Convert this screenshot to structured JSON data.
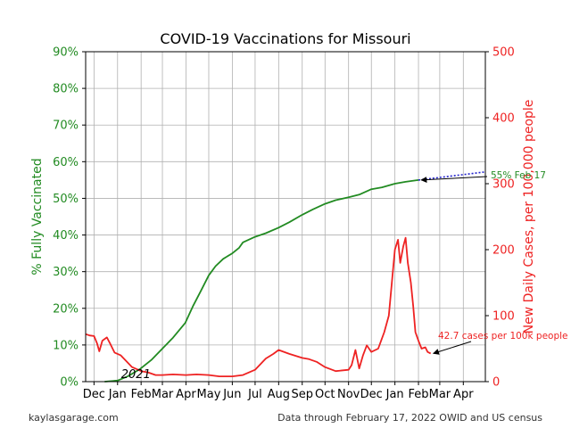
{
  "chart_data": {
    "type": "line",
    "title": "COVID-19 Vaccinations for Missouri",
    "ylabel_left": "% Fully Vaccinated",
    "ylabel_right": "New Daily Cases, per 100,000 people",
    "x_range": [
      "2020-11-20",
      "2022-04-30"
    ],
    "ylim_left": [
      0,
      90
    ],
    "ylim_right": [
      0,
      500
    ],
    "left_ticks": [
      "0%",
      "10%",
      "20%",
      "30%",
      "40%",
      "50%",
      "60%",
      "70%",
      "80%",
      "90%"
    ],
    "right_ticks": [
      "0",
      "100",
      "200",
      "300",
      "400",
      "500"
    ],
    "x_ticks": [
      {
        "date": "2020-12-01",
        "label": "Dec"
      },
      {
        "date": "2021-01-01",
        "label": "Jan"
      },
      {
        "date": "2021-02-01",
        "label": "Feb"
      },
      {
        "date": "2021-03-01",
        "label": "Mar"
      },
      {
        "date": "2021-04-01",
        "label": "Apr"
      },
      {
        "date": "2021-05-01",
        "label": "May"
      },
      {
        "date": "2021-06-01",
        "label": "Jun"
      },
      {
        "date": "2021-07-01",
        "label": "Jul"
      },
      {
        "date": "2021-08-01",
        "label": "Aug"
      },
      {
        "date": "2021-09-01",
        "label": "Sep"
      },
      {
        "date": "2021-10-01",
        "label": "Oct"
      },
      {
        "date": "2021-11-01",
        "label": "Nov"
      },
      {
        "date": "2021-12-01",
        "label": "Dec"
      },
      {
        "date": "2022-01-01",
        "label": "Jan"
      },
      {
        "date": "2022-02-01",
        "label": "Feb"
      },
      {
        "date": "2022-03-01",
        "label": "Mar"
      },
      {
        "date": "2022-04-01",
        "label": "Apr"
      }
    ],
    "year_label": {
      "date": "2021-01-01",
      "text": "2021"
    },
    "grid": true,
    "series": [
      {
        "name": "% Fully Vaccinated",
        "axis": "left",
        "color": "#228B22",
        "points": [
          [
            "2020-12-15",
            0
          ],
          [
            "2021-01-01",
            0.3
          ],
          [
            "2021-01-15",
            1.5
          ],
          [
            "2021-01-31",
            3.5
          ],
          [
            "2021-02-15",
            6.0
          ],
          [
            "2021-03-01",
            9.0
          ],
          [
            "2021-03-15",
            12.0
          ],
          [
            "2021-03-31",
            16.0
          ],
          [
            "2021-04-10",
            20.5
          ],
          [
            "2021-04-20",
            24.5
          ],
          [
            "2021-05-01",
            29.0
          ],
          [
            "2021-05-10",
            31.5
          ],
          [
            "2021-05-20",
            33.5
          ],
          [
            "2021-06-01",
            35.0
          ],
          [
            "2021-06-10",
            36.5
          ],
          [
            "2021-06-15",
            38.0
          ],
          [
            "2021-07-01",
            39.5
          ],
          [
            "2021-07-15",
            40.5
          ],
          [
            "2021-08-01",
            42.0
          ],
          [
            "2021-08-15",
            43.5
          ],
          [
            "2021-09-01",
            45.5
          ],
          [
            "2021-09-15",
            47.0
          ],
          [
            "2021-10-01",
            48.5
          ],
          [
            "2021-10-15",
            49.5
          ],
          [
            "2021-11-01",
            50.3
          ],
          [
            "2021-11-15",
            51.0
          ],
          [
            "2021-12-01",
            52.5
          ],
          [
            "2021-12-15",
            53.0
          ],
          [
            "2022-01-01",
            54.0
          ],
          [
            "2022-01-15",
            54.5
          ],
          [
            "2022-02-01",
            55.0
          ]
        ]
      },
      {
        "name": "New Daily Cases, per 100,000 people",
        "axis": "right",
        "color": "#EE2222",
        "points": [
          [
            "2020-11-20",
            72
          ],
          [
            "2020-11-25",
            70
          ],
          [
            "2020-12-01",
            69
          ],
          [
            "2020-12-05",
            58
          ],
          [
            "2020-12-08",
            46
          ],
          [
            "2020-12-12",
            62
          ],
          [
            "2020-12-18",
            67
          ],
          [
            "2020-12-22",
            58
          ],
          [
            "2020-12-28",
            44
          ],
          [
            "2021-01-05",
            40
          ],
          [
            "2021-01-10",
            34
          ],
          [
            "2021-01-15",
            28
          ],
          [
            "2021-01-20",
            22
          ],
          [
            "2021-02-01",
            16
          ],
          [
            "2021-02-10",
            14
          ],
          [
            "2021-02-20",
            10
          ],
          [
            "2021-03-01",
            10
          ],
          [
            "2021-03-15",
            11
          ],
          [
            "2021-04-01",
            10
          ],
          [
            "2021-04-15",
            11
          ],
          [
            "2021-05-01",
            10
          ],
          [
            "2021-05-15",
            8
          ],
          [
            "2021-06-01",
            8
          ],
          [
            "2021-06-15",
            10
          ],
          [
            "2021-07-01",
            18
          ],
          [
            "2021-07-15",
            35
          ],
          [
            "2021-07-25",
            42
          ],
          [
            "2021-08-01",
            48
          ],
          [
            "2021-08-15",
            42
          ],
          [
            "2021-09-01",
            36
          ],
          [
            "2021-09-10",
            34
          ],
          [
            "2021-09-20",
            30
          ],
          [
            "2021-10-01",
            22
          ],
          [
            "2021-10-15",
            16
          ],
          [
            "2021-11-01",
            18
          ],
          [
            "2021-11-05",
            25
          ],
          [
            "2021-11-10",
            48
          ],
          [
            "2021-11-15",
            20
          ],
          [
            "2021-11-20",
            40
          ],
          [
            "2021-11-25",
            55
          ],
          [
            "2021-12-01",
            45
          ],
          [
            "2021-12-10",
            50
          ],
          [
            "2021-12-18",
            75
          ],
          [
            "2021-12-24",
            100
          ],
          [
            "2021-12-28",
            150
          ],
          [
            "2022-01-01",
            200
          ],
          [
            "2022-01-05",
            215
          ],
          [
            "2022-01-08",
            180
          ],
          [
            "2022-01-12",
            205
          ],
          [
            "2022-01-15",
            218
          ],
          [
            "2022-01-18",
            180
          ],
          [
            "2022-01-22",
            150
          ],
          [
            "2022-01-25",
            115
          ],
          [
            "2022-01-28",
            75
          ],
          [
            "2022-02-01",
            62
          ],
          [
            "2022-02-05",
            50
          ],
          [
            "2022-02-10",
            52
          ],
          [
            "2022-02-13",
            45
          ],
          [
            "2022-02-17",
            42.7
          ]
        ]
      },
      {
        "name": "projection",
        "axis": "left",
        "color": "#2222CC",
        "dashed": true,
        "points": [
          [
            "2022-02-01",
            55.0
          ],
          [
            "2022-04-30",
            57.2
          ]
        ]
      }
    ],
    "annotations": [
      {
        "id": "vax",
        "text": "55% Feb 17",
        "color": "#228B22",
        "axis": "left",
        "target": [
          "2022-02-01",
          55.0
        ]
      },
      {
        "id": "cases",
        "text": "42.7 cases per 100k people",
        "color": "#EE2222",
        "axis": "right",
        "target": [
          "2022-02-17",
          42.7
        ]
      }
    ]
  },
  "footer": {
    "left": "kaylasgarage.com",
    "right": "Data through February 17, 2022 OWID and US census"
  }
}
